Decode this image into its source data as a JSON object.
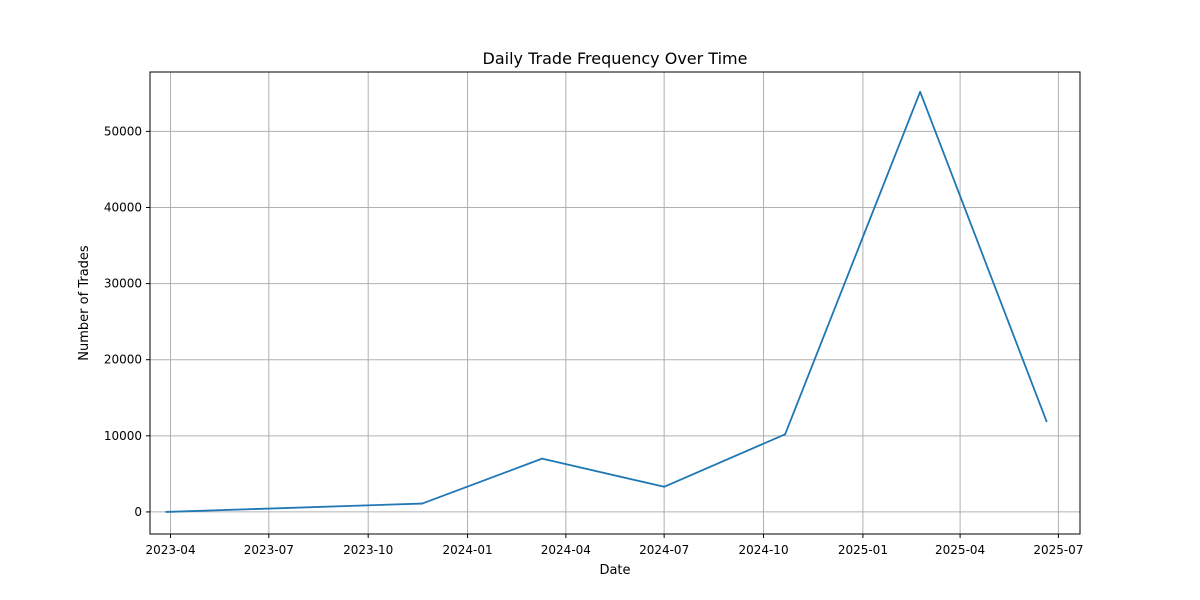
{
  "chart_data": {
    "type": "line",
    "title": "Daily Trade Frequency Over Time",
    "xlabel": "Date",
    "ylabel": "Number of Trades",
    "x_ticks": [
      "2023-04",
      "2023-07",
      "2023-10",
      "2024-01",
      "2024-04",
      "2024-07",
      "2024-10",
      "2025-01",
      "2025-04",
      "2025-07"
    ],
    "y_ticks": [
      "0",
      "10000",
      "20000",
      "30000",
      "40000",
      "50000"
    ],
    "xlim": [
      "2023-03-13",
      "2025-07-21"
    ],
    "ylim": [
      -2900,
      57800
    ],
    "grid": true,
    "series": [
      {
        "color": "#1f77b4",
        "x": [
          "2023-03-28",
          "2023-11-20",
          "2024-03-10",
          "2024-07-01",
          "2024-10-21",
          "2025-02-23",
          "2025-06-20"
        ],
        "values": [
          0,
          1100,
          7000,
          3300,
          10200,
          55200,
          11900
        ]
      }
    ]
  }
}
